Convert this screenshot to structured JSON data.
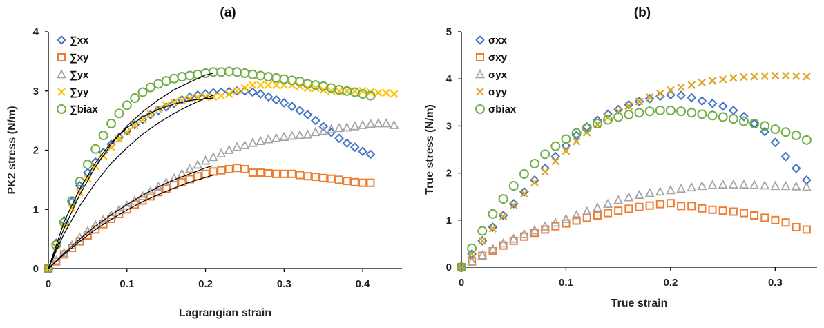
{
  "chart_data": [
    {
      "type": "scatter",
      "title": "(a)",
      "xlabel": "Lagrangian strain",
      "ylabel": "PK2 stress (N/m)",
      "xlim": [
        0,
        0.45
      ],
      "ylim": [
        0,
        4
      ],
      "xticks": [
        0,
        0.1,
        0.2,
        0.3,
        0.4
      ],
      "xtick_labels": [
        "0",
        "0.1",
        "0.2",
        "0.3",
        "0.4"
      ],
      "yticks": [
        0,
        1,
        2,
        3,
        4
      ],
      "ytick_labels": [
        "0",
        "1",
        "2",
        "3",
        "4"
      ],
      "grid": false,
      "legend_position": "top-left",
      "series": [
        {
          "name": "∑xx",
          "marker": "diamond",
          "color": "#4472C4",
          "x": [
            0,
            0.01,
            0.02,
            0.03,
            0.04,
            0.05,
            0.06,
            0.07,
            0.08,
            0.09,
            0.1,
            0.11,
            0.12,
            0.13,
            0.14,
            0.15,
            0.16,
            0.17,
            0.18,
            0.19,
            0.2,
            0.21,
            0.22,
            0.23,
            0.24,
            0.25,
            0.26,
            0.27,
            0.28,
            0.29,
            0.3,
            0.31,
            0.32,
            0.33,
            0.34,
            0.35,
            0.36,
            0.37,
            0.38,
            0.39,
            0.4,
            0.41
          ],
          "y": [
            0,
            0.43,
            0.81,
            1.13,
            1.4,
            1.62,
            1.8,
            1.96,
            2.1,
            2.22,
            2.33,
            2.43,
            2.52,
            2.6,
            2.67,
            2.73,
            2.79,
            2.85,
            2.9,
            2.93,
            2.95,
            2.97,
            2.98,
            2.99,
            3.0,
            3.0,
            2.98,
            2.95,
            2.9,
            2.85,
            2.8,
            2.74,
            2.67,
            2.6,
            2.5,
            2.4,
            2.3,
            2.2,
            2.12,
            2.05,
            1.98,
            1.93
          ]
        },
        {
          "name": "∑xy",
          "marker": "square",
          "color": "#ED7D31",
          "x": [
            0,
            0.01,
            0.02,
            0.03,
            0.04,
            0.05,
            0.06,
            0.07,
            0.08,
            0.09,
            0.1,
            0.11,
            0.12,
            0.13,
            0.14,
            0.15,
            0.16,
            0.17,
            0.18,
            0.19,
            0.2,
            0.21,
            0.22,
            0.23,
            0.24,
            0.25,
            0.26,
            0.27,
            0.28,
            0.29,
            0.3,
            0.31,
            0.32,
            0.33,
            0.34,
            0.35,
            0.36,
            0.37,
            0.38,
            0.39,
            0.4,
            0.41
          ],
          "y": [
            0,
            0.12,
            0.24,
            0.35,
            0.46,
            0.56,
            0.66,
            0.75,
            0.84,
            0.92,
            1.0,
            1.08,
            1.15,
            1.22,
            1.29,
            1.35,
            1.41,
            1.46,
            1.51,
            1.56,
            1.6,
            1.64,
            1.66,
            1.68,
            1.7,
            1.68,
            1.62,
            1.62,
            1.61,
            1.6,
            1.6,
            1.6,
            1.58,
            1.56,
            1.55,
            1.53,
            1.52,
            1.5,
            1.48,
            1.46,
            1.45,
            1.45
          ]
        },
        {
          "name": "∑yx",
          "marker": "triangle",
          "color": "#A5A5A5",
          "x": [
            0,
            0.01,
            0.02,
            0.03,
            0.04,
            0.05,
            0.06,
            0.07,
            0.08,
            0.09,
            0.1,
            0.11,
            0.12,
            0.13,
            0.14,
            0.15,
            0.16,
            0.17,
            0.18,
            0.19,
            0.2,
            0.21,
            0.22,
            0.23,
            0.24,
            0.25,
            0.26,
            0.27,
            0.28,
            0.29,
            0.3,
            0.31,
            0.32,
            0.33,
            0.34,
            0.35,
            0.36,
            0.37,
            0.38,
            0.39,
            0.4,
            0.41,
            0.42,
            0.43,
            0.44
          ],
          "y": [
            0,
            0.13,
            0.26,
            0.39,
            0.52,
            0.63,
            0.73,
            0.82,
            0.9,
            0.99,
            1.06,
            1.14,
            1.22,
            1.3,
            1.38,
            1.45,
            1.52,
            1.6,
            1.68,
            1.75,
            1.82,
            1.88,
            1.94,
            2.0,
            2.05,
            2.08,
            2.12,
            2.15,
            2.18,
            2.2,
            2.22,
            2.24,
            2.25,
            2.26,
            2.3,
            2.32,
            2.35,
            2.37,
            2.38,
            2.4,
            2.42,
            2.44,
            2.45,
            2.45,
            2.42
          ]
        },
        {
          "name": "∑yy",
          "marker": "x",
          "color": "#FFC000",
          "x": [
            0,
            0.01,
            0.02,
            0.03,
            0.04,
            0.05,
            0.06,
            0.07,
            0.08,
            0.09,
            0.1,
            0.11,
            0.12,
            0.13,
            0.14,
            0.15,
            0.16,
            0.17,
            0.18,
            0.19,
            0.2,
            0.21,
            0.22,
            0.23,
            0.24,
            0.25,
            0.26,
            0.27,
            0.28,
            0.29,
            0.3,
            0.31,
            0.32,
            0.33,
            0.34,
            0.35,
            0.36,
            0.37,
            0.38,
            0.39,
            0.4,
            0.41,
            0.42,
            0.43,
            0.44
          ],
          "y": [
            0,
            0.38,
            0.72,
            1.02,
            1.29,
            1.52,
            1.73,
            1.9,
            2.05,
            2.19,
            2.31,
            2.42,
            2.52,
            2.61,
            2.69,
            2.76,
            2.81,
            2.84,
            2.87,
            2.89,
            2.9,
            2.9,
            2.92,
            2.95,
            3.0,
            3.05,
            3.1,
            3.1,
            3.1,
            3.1,
            3.1,
            3.1,
            3.08,
            3.05,
            3.05,
            3.02,
            3.0,
            3.0,
            3.0,
            3.0,
            3.0,
            2.98,
            2.97,
            2.97,
            2.95
          ]
        },
        {
          "name": "∑biax",
          "marker": "circle",
          "color": "#70AD47",
          "x": [
            0,
            0.01,
            0.02,
            0.03,
            0.04,
            0.05,
            0.06,
            0.07,
            0.08,
            0.09,
            0.1,
            0.11,
            0.12,
            0.13,
            0.14,
            0.15,
            0.16,
            0.17,
            0.18,
            0.19,
            0.2,
            0.21,
            0.22,
            0.23,
            0.24,
            0.25,
            0.26,
            0.27,
            0.28,
            0.29,
            0.3,
            0.31,
            0.32,
            0.33,
            0.34,
            0.35,
            0.36,
            0.37,
            0.38,
            0.39,
            0.4,
            0.41
          ],
          "y": [
            0,
            0.4,
            0.78,
            1.14,
            1.47,
            1.76,
            2.02,
            2.25,
            2.45,
            2.62,
            2.76,
            2.88,
            2.98,
            3.06,
            3.12,
            3.17,
            3.21,
            3.24,
            3.26,
            3.28,
            3.3,
            3.32,
            3.32,
            3.33,
            3.32,
            3.3,
            3.28,
            3.26,
            3.24,
            3.22,
            3.2,
            3.18,
            3.16,
            3.12,
            3.1,
            3.08,
            3.05,
            3.02,
            3.0,
            2.98,
            2.95,
            2.92
          ]
        }
      ],
      "fits": [
        {
          "x": [
            0,
            0.02,
            0.04,
            0.06,
            0.08,
            0.1,
            0.12,
            0.14,
            0.16,
            0.18,
            0.2,
            0.21
          ],
          "y": [
            0,
            0.68,
            1.25,
            1.72,
            2.1,
            2.41,
            2.65,
            2.85,
            3.02,
            3.15,
            3.27,
            3.3
          ]
        },
        {
          "x": [
            0,
            0.02,
            0.04,
            0.06,
            0.08,
            0.1,
            0.12,
            0.14,
            0.16,
            0.18,
            0.2,
            0.21
          ],
          "y": [
            0,
            0.79,
            1.35,
            1.79,
            2.13,
            2.38,
            2.56,
            2.69,
            2.78,
            2.84,
            2.87,
            2.88
          ]
        },
        {
          "x": [
            0,
            0.02,
            0.04,
            0.06,
            0.08,
            0.1,
            0.12,
            0.14,
            0.16,
            0.18,
            0.2,
            0.21
          ],
          "y": [
            0,
            0.59,
            1.06,
            1.45,
            1.78,
            2.04,
            2.27,
            2.46,
            2.62,
            2.76,
            2.88,
            2.93
          ]
        },
        {
          "x": [
            0,
            0.02,
            0.04,
            0.06,
            0.08,
            0.1,
            0.12,
            0.14,
            0.16,
            0.18,
            0.2,
            0.21
          ],
          "y": [
            0,
            0.26,
            0.5,
            0.72,
            0.91,
            1.08,
            1.24,
            1.38,
            1.5,
            1.6,
            1.7,
            1.74
          ]
        },
        {
          "x": [
            0,
            0.02,
            0.04,
            0.06,
            0.08,
            0.1,
            0.12,
            0.14,
            0.16,
            0.18,
            0.2,
            0.21
          ],
          "y": [
            0,
            0.24,
            0.46,
            0.66,
            0.83,
            0.99,
            1.13,
            1.25,
            1.36,
            1.46,
            1.54,
            1.58
          ]
        }
      ]
    },
    {
      "type": "scatter",
      "title": "(b)",
      "xlabel": "True strain",
      "ylabel": "True stress (N/m)",
      "xlim": [
        0,
        0.34
      ],
      "ylim": [
        0,
        5
      ],
      "xticks": [
        0,
        0.1,
        0.2,
        0.3
      ],
      "xtick_labels": [
        "0",
        "0.1",
        "0.2",
        "0.3"
      ],
      "yticks": [
        0,
        1,
        2,
        3,
        4,
        5
      ],
      "ytick_labels": [
        "0",
        "1",
        "2",
        "3",
        "4",
        "5"
      ],
      "grid": false,
      "legend_position": "top-left",
      "series": [
        {
          "name": "σxx",
          "marker": "diamond",
          "color": "#4472C4",
          "x": [
            0,
            0.01,
            0.02,
            0.03,
            0.04,
            0.05,
            0.06,
            0.07,
            0.08,
            0.09,
            0.1,
            0.11,
            0.12,
            0.13,
            0.14,
            0.15,
            0.16,
            0.17,
            0.18,
            0.19,
            0.2,
            0.21,
            0.22,
            0.23,
            0.24,
            0.25,
            0.26,
            0.27,
            0.28,
            0.29,
            0.3,
            0.31,
            0.32,
            0.33
          ],
          "y": [
            0,
            0.28,
            0.56,
            0.85,
            1.1,
            1.35,
            1.6,
            1.85,
            2.1,
            2.35,
            2.58,
            2.8,
            2.98,
            3.12,
            3.25,
            3.35,
            3.45,
            3.52,
            3.58,
            3.63,
            3.66,
            3.65,
            3.6,
            3.53,
            3.48,
            3.42,
            3.33,
            3.2,
            3.05,
            2.88,
            2.65,
            2.35,
            2.1,
            1.85
          ]
        },
        {
          "name": "σxy",
          "marker": "square",
          "color": "#ED7D31",
          "x": [
            0,
            0.01,
            0.02,
            0.03,
            0.04,
            0.05,
            0.06,
            0.07,
            0.08,
            0.09,
            0.1,
            0.11,
            0.12,
            0.13,
            0.14,
            0.15,
            0.16,
            0.17,
            0.18,
            0.19,
            0.2,
            0.21,
            0.22,
            0.23,
            0.24,
            0.25,
            0.26,
            0.27,
            0.28,
            0.29,
            0.3,
            0.31,
            0.32,
            0.33
          ],
          "y": [
            0,
            0.12,
            0.24,
            0.35,
            0.46,
            0.56,
            0.65,
            0.73,
            0.8,
            0.87,
            0.93,
            0.99,
            1.05,
            1.1,
            1.15,
            1.2,
            1.24,
            1.28,
            1.31,
            1.34,
            1.36,
            1.3,
            1.3,
            1.25,
            1.22,
            1.2,
            1.18,
            1.15,
            1.1,
            1.05,
            1.0,
            0.95,
            0.85,
            0.8
          ]
        },
        {
          "name": "σyx",
          "marker": "triangle",
          "color": "#A5A5A5",
          "x": [
            0,
            0.01,
            0.02,
            0.03,
            0.04,
            0.05,
            0.06,
            0.07,
            0.08,
            0.09,
            0.1,
            0.11,
            0.12,
            0.13,
            0.14,
            0.15,
            0.16,
            0.17,
            0.18,
            0.19,
            0.2,
            0.21,
            0.22,
            0.23,
            0.24,
            0.25,
            0.26,
            0.27,
            0.28,
            0.29,
            0.3,
            0.31,
            0.32,
            0.33
          ],
          "y": [
            0,
            0.12,
            0.25,
            0.38,
            0.5,
            0.6,
            0.7,
            0.78,
            0.86,
            0.94,
            1.02,
            1.1,
            1.18,
            1.26,
            1.34,
            1.42,
            1.48,
            1.53,
            1.57,
            1.6,
            1.63,
            1.66,
            1.69,
            1.72,
            1.74,
            1.75,
            1.75,
            1.75,
            1.74,
            1.73,
            1.72,
            1.72,
            1.71,
            1.7
          ]
        },
        {
          "name": "σyy",
          "marker": "x",
          "color": "#DAA520",
          "x": [
            0,
            0.01,
            0.02,
            0.03,
            0.04,
            0.05,
            0.06,
            0.07,
            0.08,
            0.09,
            0.1,
            0.11,
            0.12,
            0.13,
            0.14,
            0.15,
            0.16,
            0.17,
            0.18,
            0.19,
            0.2,
            0.21,
            0.22,
            0.23,
            0.24,
            0.25,
            0.26,
            0.27,
            0.28,
            0.29,
            0.3,
            0.31,
            0.32,
            0.33
          ],
          "y": [
            0,
            0.28,
            0.56,
            0.82,
            1.08,
            1.32,
            1.56,
            1.8,
            2.03,
            2.25,
            2.47,
            2.67,
            2.86,
            3.03,
            3.18,
            3.31,
            3.42,
            3.52,
            3.61,
            3.69,
            3.76,
            3.82,
            3.87,
            3.92,
            3.96,
            3.99,
            4.02,
            4.04,
            4.05,
            4.06,
            4.07,
            4.07,
            4.06,
            4.05
          ]
        },
        {
          "name": "σbiax",
          "marker": "circle",
          "color": "#70AD47",
          "x": [
            0,
            0.01,
            0.02,
            0.03,
            0.04,
            0.05,
            0.06,
            0.07,
            0.08,
            0.09,
            0.1,
            0.11,
            0.12,
            0.13,
            0.14,
            0.15,
            0.16,
            0.17,
            0.18,
            0.19,
            0.2,
            0.21,
            0.22,
            0.23,
            0.24,
            0.25,
            0.26,
            0.27,
            0.28,
            0.29,
            0.3,
            0.31,
            0.32,
            0.33
          ],
          "y": [
            0,
            0.4,
            0.77,
            1.13,
            1.45,
            1.73,
            1.98,
            2.2,
            2.4,
            2.57,
            2.72,
            2.85,
            2.96,
            3.05,
            3.13,
            3.19,
            3.24,
            3.28,
            3.31,
            3.33,
            3.33,
            3.31,
            3.28,
            3.25,
            3.22,
            3.19,
            3.15,
            3.1,
            3.05,
            3.0,
            2.93,
            2.87,
            2.8,
            2.7
          ]
        }
      ]
    }
  ]
}
